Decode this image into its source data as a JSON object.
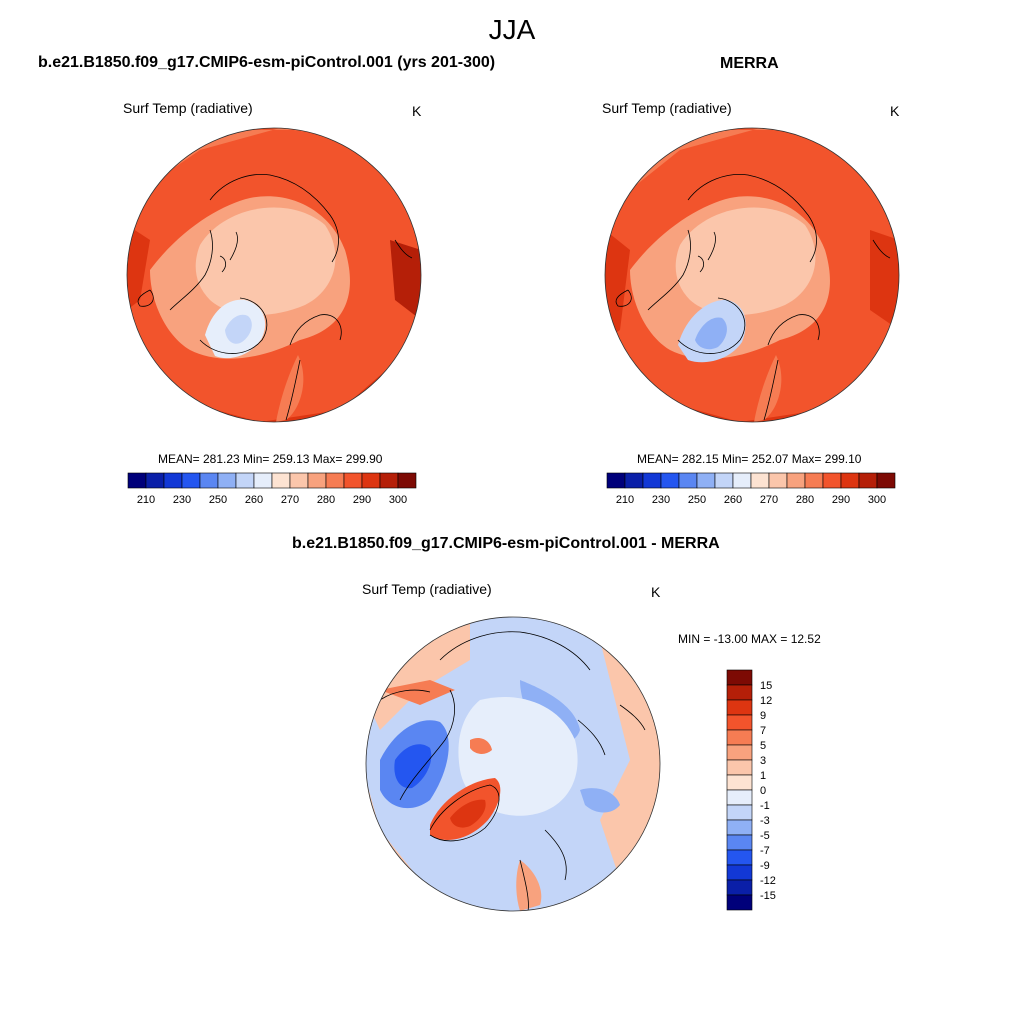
{
  "page": {
    "title": "JJA"
  },
  "panels": [
    {
      "title": "b.e21.B1850.f09_g17.CMIP6-esm-piControl.001 (yrs 201-300)",
      "field_label": "Surf Temp (radiative)",
      "units": "K",
      "stats": "MEAN= 281.23  Min= 259.13  Max= 299.90"
    },
    {
      "title": "MERRA",
      "field_label": "Surf Temp (radiative)",
      "units": "K",
      "stats": "MEAN= 282.15  Min= 252.07  Max= 299.10"
    },
    {
      "title": "b.e21.B1850.f09_g17.CMIP6-esm-piControl.001 - MERRA",
      "field_label": "Surf Temp (radiative)",
      "units": "K",
      "stats": "MIN = -13.00 MAX =  12.52"
    }
  ],
  "colorbar_abs": {
    "tick_labels": [
      "210",
      "230",
      "250",
      "260",
      "270",
      "280",
      "290",
      "300"
    ],
    "colors": [
      "#00007a",
      "#0a1fa8",
      "#1238d6",
      "#2456f0",
      "#5a86f2",
      "#8fb0f5",
      "#c3d5f8",
      "#e6eefb",
      "#fde3d2",
      "#fbc6ab",
      "#f8a27e",
      "#f67c53",
      "#f2542c",
      "#dd3511",
      "#b51f08",
      "#7d0a04"
    ]
  },
  "colorbar_diff": {
    "tick_labels": [
      "15",
      "12",
      "9",
      "7",
      "5",
      "3",
      "1",
      "0",
      "-1",
      "-3",
      "-5",
      "-7",
      "-9",
      "-12",
      "-15"
    ],
    "colors": [
      "#7d0a04",
      "#b51f08",
      "#dd3511",
      "#f2542c",
      "#f67c53",
      "#f8a27e",
      "#fbc6ab",
      "#fde3d2",
      "#e6eefb",
      "#c3d5f8",
      "#8fb0f5",
      "#5a86f2",
      "#2456f0",
      "#1238d6",
      "#0a1fa8",
      "#00007a"
    ]
  }
}
